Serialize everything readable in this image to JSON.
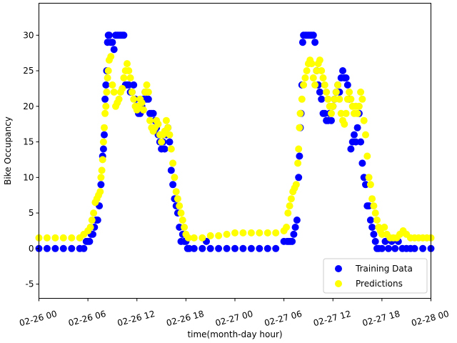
{
  "chart_data": {
    "type": "scatter",
    "xlabel": "time(month-day hour)",
    "ylabel": "Bike Occupancy",
    "xlim": [
      "02-26 00",
      "02-28 00"
    ],
    "ylim": [
      -7,
      34.5
    ],
    "x_ticks": [
      "02-26 00",
      "02-26 06",
      "02-26 12",
      "02-26 18",
      "02-27 00",
      "02-27 06",
      "02-27 12",
      "02-27 18",
      "02-28 00"
    ],
    "y_ticks": [
      -5,
      0,
      5,
      10,
      15,
      20,
      25,
      30
    ],
    "grid": false,
    "legend_position": "lower-right",
    "x_unit_note": "x values are hours from 02-26 00",
    "series": [
      {
        "name": "Training Data",
        "color": "#0000ff",
        "points": [
          [
            0,
            0
          ],
          [
            1,
            0
          ],
          [
            2,
            0
          ],
          [
            3,
            0
          ],
          [
            4,
            0
          ],
          [
            5,
            0
          ],
          [
            5.5,
            0
          ],
          [
            5.8,
            1
          ],
          [
            6,
            1
          ],
          [
            6.2,
            1
          ],
          [
            6.4,
            2
          ],
          [
            6.6,
            2
          ],
          [
            6.8,
            3
          ],
          [
            7,
            4
          ],
          [
            7.2,
            4
          ],
          [
            7.4,
            6
          ],
          [
            7.6,
            9
          ],
          [
            7.8,
            13
          ],
          [
            7.9,
            14
          ],
          [
            8,
            16
          ],
          [
            8.1,
            21
          ],
          [
            8.2,
            23
          ],
          [
            8.3,
            25
          ],
          [
            8.4,
            29
          ],
          [
            8.5,
            30
          ],
          [
            8.6,
            30
          ],
          [
            8.8,
            29
          ],
          [
            9,
            29
          ],
          [
            9.2,
            28
          ],
          [
            9.4,
            30
          ],
          [
            9.6,
            30
          ],
          [
            9.8,
            30
          ],
          [
            10,
            30
          ],
          [
            10.2,
            30
          ],
          [
            10.4,
            30
          ],
          [
            10.6,
            23
          ],
          [
            10.8,
            23
          ],
          [
            11,
            23
          ],
          [
            11.2,
            22
          ],
          [
            11.4,
            22
          ],
          [
            11.6,
            23
          ],
          [
            11.8,
            21
          ],
          [
            12,
            20
          ],
          [
            12.2,
            19
          ],
          [
            12.4,
            19
          ],
          [
            12.6,
            20
          ],
          [
            12.8,
            21
          ],
          [
            13,
            22
          ],
          [
            13.2,
            21
          ],
          [
            13.4,
            21
          ],
          [
            13.6,
            19
          ],
          [
            13.8,
            19
          ],
          [
            14,
            19
          ],
          [
            14.2,
            18
          ],
          [
            14.4,
            17
          ],
          [
            14.6,
            16
          ],
          [
            14.8,
            15
          ],
          [
            15,
            14
          ],
          [
            15.2,
            15
          ],
          [
            15.4,
            14
          ],
          [
            15.6,
            16
          ],
          [
            15.8,
            17
          ],
          [
            16,
            15
          ],
          [
            16.2,
            11
          ],
          [
            16.4,
            9
          ],
          [
            16.6,
            7
          ],
          [
            16.8,
            6
          ],
          [
            17,
            5
          ],
          [
            17.2,
            3
          ],
          [
            17.4,
            1
          ],
          [
            17.6,
            2
          ],
          [
            17.8,
            1
          ],
          [
            18,
            1
          ],
          [
            18.2,
            0
          ],
          [
            18.4,
            0
          ],
          [
            19,
            0
          ],
          [
            20,
            0
          ],
          [
            20.5,
            1
          ],
          [
            21,
            0
          ],
          [
            22,
            0
          ],
          [
            23,
            0
          ],
          [
            24,
            0
          ],
          [
            25,
            0
          ],
          [
            26,
            0
          ],
          [
            27,
            0
          ],
          [
            28,
            0
          ],
          [
            29,
            0
          ],
          [
            30,
            1
          ],
          [
            30.4,
            1
          ],
          [
            30.6,
            1
          ],
          [
            30.8,
            1
          ],
          [
            31,
            1
          ],
          [
            31.2,
            2
          ],
          [
            31.4,
            3
          ],
          [
            31.6,
            4
          ],
          [
            31.8,
            10
          ],
          [
            31.9,
            13
          ],
          [
            32,
            17
          ],
          [
            32.1,
            19
          ],
          [
            32.2,
            23
          ],
          [
            32.3,
            29
          ],
          [
            32.4,
            30
          ],
          [
            32.6,
            30
          ],
          [
            32.8,
            30
          ],
          [
            33,
            30
          ],
          [
            33.2,
            30
          ],
          [
            33.4,
            30
          ],
          [
            33.6,
            30
          ],
          [
            33.8,
            29
          ],
          [
            34,
            25
          ],
          [
            34.2,
            23
          ],
          [
            34.4,
            22
          ],
          [
            34.6,
            21
          ],
          [
            34.8,
            19
          ],
          [
            35,
            19
          ],
          [
            35.2,
            18
          ],
          [
            35.4,
            18
          ],
          [
            35.6,
            19
          ],
          [
            35.8,
            18
          ],
          [
            36,
            20
          ],
          [
            36.2,
            21
          ],
          [
            36.4,
            22
          ],
          [
            36.6,
            23
          ],
          [
            36.8,
            22
          ],
          [
            37,
            24
          ],
          [
            37.2,
            25
          ],
          [
            37.4,
            24
          ],
          [
            37.6,
            24
          ],
          [
            37.8,
            23
          ],
          [
            38,
            21
          ],
          [
            38.2,
            14
          ],
          [
            38.4,
            15
          ],
          [
            38.6,
            16
          ],
          [
            38.8,
            15
          ],
          [
            39,
            17
          ],
          [
            39.2,
            19
          ],
          [
            39.4,
            15
          ],
          [
            39.6,
            12
          ],
          [
            39.8,
            10
          ],
          [
            40,
            9
          ],
          [
            40.2,
            6
          ],
          [
            40.4,
            6
          ],
          [
            40.6,
            4
          ],
          [
            40.8,
            3
          ],
          [
            41,
            2
          ],
          [
            41.2,
            1
          ],
          [
            41.4,
            0
          ],
          [
            41.6,
            0
          ],
          [
            42,
            0
          ],
          [
            42.4,
            1
          ],
          [
            42.8,
            0
          ],
          [
            43.2,
            1
          ],
          [
            43.6,
            0
          ],
          [
            44,
            1
          ],
          [
            44.5,
            0
          ],
          [
            45,
            0
          ],
          [
            45.5,
            0
          ],
          [
            46,
            0
          ],
          [
            47,
            0
          ],
          [
            48,
            0
          ]
        ]
      },
      {
        "name": "Predictions",
        "color": "#ffff00",
        "points": [
          [
            0,
            1.5
          ],
          [
            1,
            1.5
          ],
          [
            2,
            1.5
          ],
          [
            3,
            1.5
          ],
          [
            4,
            1.5
          ],
          [
            5,
            1.5
          ],
          [
            5.5,
            2
          ],
          [
            6,
            2.5
          ],
          [
            6.3,
            3
          ],
          [
            6.5,
            4
          ],
          [
            6.7,
            5
          ],
          [
            6.9,
            6.5
          ],
          [
            7.1,
            7
          ],
          [
            7.3,
            7.5
          ],
          [
            7.5,
            8
          ],
          [
            7.6,
            10
          ],
          [
            7.7,
            11
          ],
          [
            7.8,
            12.5
          ],
          [
            7.9,
            15
          ],
          [
            8,
            17
          ],
          [
            8.1,
            19
          ],
          [
            8.2,
            20
          ],
          [
            8.3,
            22
          ],
          [
            8.4,
            24
          ],
          [
            8.5,
            25
          ],
          [
            8.6,
            26.5
          ],
          [
            8.8,
            27
          ],
          [
            9,
            23
          ],
          [
            9.2,
            22
          ],
          [
            9.4,
            20
          ],
          [
            9.6,
            20.5
          ],
          [
            9.8,
            21
          ],
          [
            10,
            22
          ],
          [
            10.2,
            22.5
          ],
          [
            10.4,
            24
          ],
          [
            10.6,
            25
          ],
          [
            10.8,
            26
          ],
          [
            11,
            25
          ],
          [
            11.2,
            24
          ],
          [
            11.4,
            22
          ],
          [
            11.6,
            21
          ],
          [
            11.8,
            20
          ],
          [
            12,
            19.5
          ],
          [
            12.2,
            20
          ],
          [
            12.4,
            21
          ],
          [
            12.6,
            20.5
          ],
          [
            12.8,
            19.5
          ],
          [
            13,
            22
          ],
          [
            13.2,
            23
          ],
          [
            13.4,
            22
          ],
          [
            13.6,
            18
          ],
          [
            13.8,
            17
          ],
          [
            14,
            16.5
          ],
          [
            14.2,
            17
          ],
          [
            14.4,
            18
          ],
          [
            14.6,
            17.5
          ],
          [
            14.8,
            16
          ],
          [
            15,
            15
          ],
          [
            15.2,
            16
          ],
          [
            15.4,
            16.5
          ],
          [
            15.6,
            18
          ],
          [
            15.8,
            17
          ],
          [
            16,
            16
          ],
          [
            16.2,
            14
          ],
          [
            16.4,
            12
          ],
          [
            16.6,
            10
          ],
          [
            16.8,
            8
          ],
          [
            17,
            7
          ],
          [
            17.2,
            6
          ],
          [
            17.4,
            5
          ],
          [
            17.6,
            4
          ],
          [
            17.8,
            3
          ],
          [
            18,
            2
          ],
          [
            18.3,
            1.5
          ],
          [
            19,
            1.5
          ],
          [
            20,
            1.5
          ],
          [
            21,
            1.8
          ],
          [
            22,
            1.8
          ],
          [
            23,
            2
          ],
          [
            24,
            2.2
          ],
          [
            25,
            2.2
          ],
          [
            26,
            2.2
          ],
          [
            27,
            2.2
          ],
          [
            28,
            2.2
          ],
          [
            29,
            2.2
          ],
          [
            30,
            2.5
          ],
          [
            30.3,
            3
          ],
          [
            30.5,
            5
          ],
          [
            30.7,
            6
          ],
          [
            30.9,
            7
          ],
          [
            31.1,
            8
          ],
          [
            31.3,
            8.5
          ],
          [
            31.5,
            9
          ],
          [
            31.7,
            12
          ],
          [
            31.8,
            14
          ],
          [
            31.9,
            17
          ],
          [
            32,
            19
          ],
          [
            32.2,
            21
          ],
          [
            32.4,
            23
          ],
          [
            32.6,
            24
          ],
          [
            32.8,
            25
          ],
          [
            33,
            26
          ],
          [
            33.2,
            26.5
          ],
          [
            33.4,
            26
          ],
          [
            33.6,
            24
          ],
          [
            33.8,
            23
          ],
          [
            34,
            25
          ],
          [
            34.2,
            26
          ],
          [
            34.4,
            26.5
          ],
          [
            34.6,
            25
          ],
          [
            34.8,
            24
          ],
          [
            35,
            23
          ],
          [
            35.2,
            22
          ],
          [
            35.4,
            21
          ],
          [
            35.6,
            20
          ],
          [
            35.8,
            19
          ],
          [
            36,
            20
          ],
          [
            36.2,
            21
          ],
          [
            36.4,
            22
          ],
          [
            36.6,
            23
          ],
          [
            36.8,
            21
          ],
          [
            37,
            19
          ],
          [
            37.2,
            18
          ],
          [
            37.4,
            17.5
          ],
          [
            37.6,
            19
          ],
          [
            37.8,
            21
          ],
          [
            38,
            22
          ],
          [
            38.2,
            21
          ],
          [
            38.4,
            20
          ],
          [
            38.6,
            19
          ],
          [
            38.8,
            20
          ],
          [
            39,
            19
          ],
          [
            39.2,
            20
          ],
          [
            39.4,
            22
          ],
          [
            39.6,
            21
          ],
          [
            39.8,
            18
          ],
          [
            40,
            16
          ],
          [
            40.2,
            13
          ],
          [
            40.4,
            10
          ],
          [
            40.6,
            9
          ],
          [
            40.8,
            7
          ],
          [
            41,
            6
          ],
          [
            41.2,
            5
          ],
          [
            41.4,
            4
          ],
          [
            41.6,
            3
          ],
          [
            41.8,
            2.5
          ],
          [
            42,
            2
          ],
          [
            42.3,
            3
          ],
          [
            42.6,
            2
          ],
          [
            43,
            1.5
          ],
          [
            43.4,
            1.5
          ],
          [
            43.8,
            1.5
          ],
          [
            44.2,
            2
          ],
          [
            44.6,
            2.5
          ],
          [
            45,
            2
          ],
          [
            45.5,
            1.5
          ],
          [
            46,
            1.5
          ],
          [
            46.5,
            1.5
          ],
          [
            47,
            1.5
          ],
          [
            47.5,
            1.5
          ],
          [
            48,
            1.5
          ]
        ]
      }
    ]
  }
}
